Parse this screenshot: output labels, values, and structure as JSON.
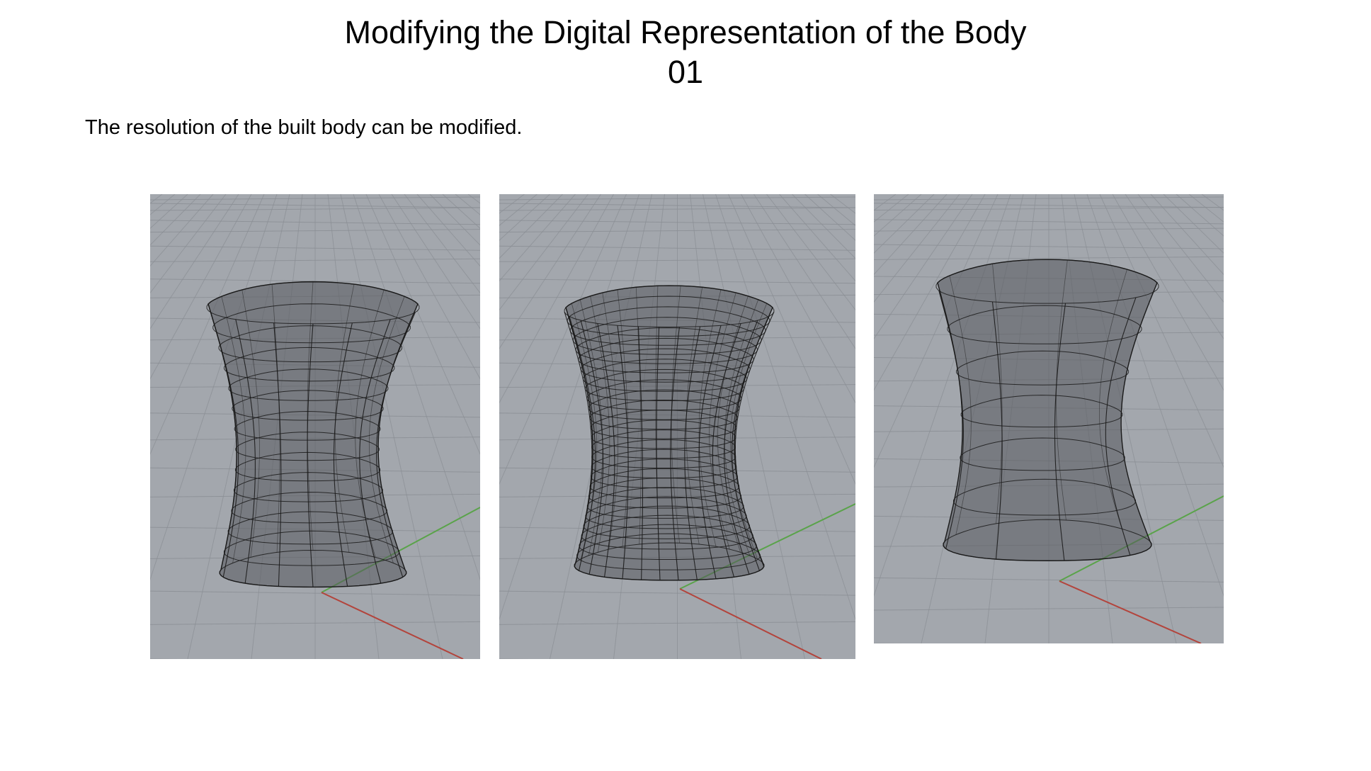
{
  "slide": {
    "title": "Modifying the Digital Representation of the Body",
    "number": "01",
    "caption": "The resolution of the built body can be modified."
  },
  "viewports": [
    {
      "resolution": "medium",
      "rings": 13,
      "meridians": 16
    },
    {
      "resolution": "high",
      "rings": 26,
      "meridians": 30
    },
    {
      "resolution": "low",
      "rings": 6,
      "meridians": 9
    }
  ],
  "colors": {
    "viewport_bg": "#a3a7ad",
    "grid_line": "#8a8e94",
    "x_axis": "#b3443c",
    "y_axis": "#5aa34a",
    "mesh_line": "#1a1a1a",
    "body_fill": "#55585d"
  }
}
